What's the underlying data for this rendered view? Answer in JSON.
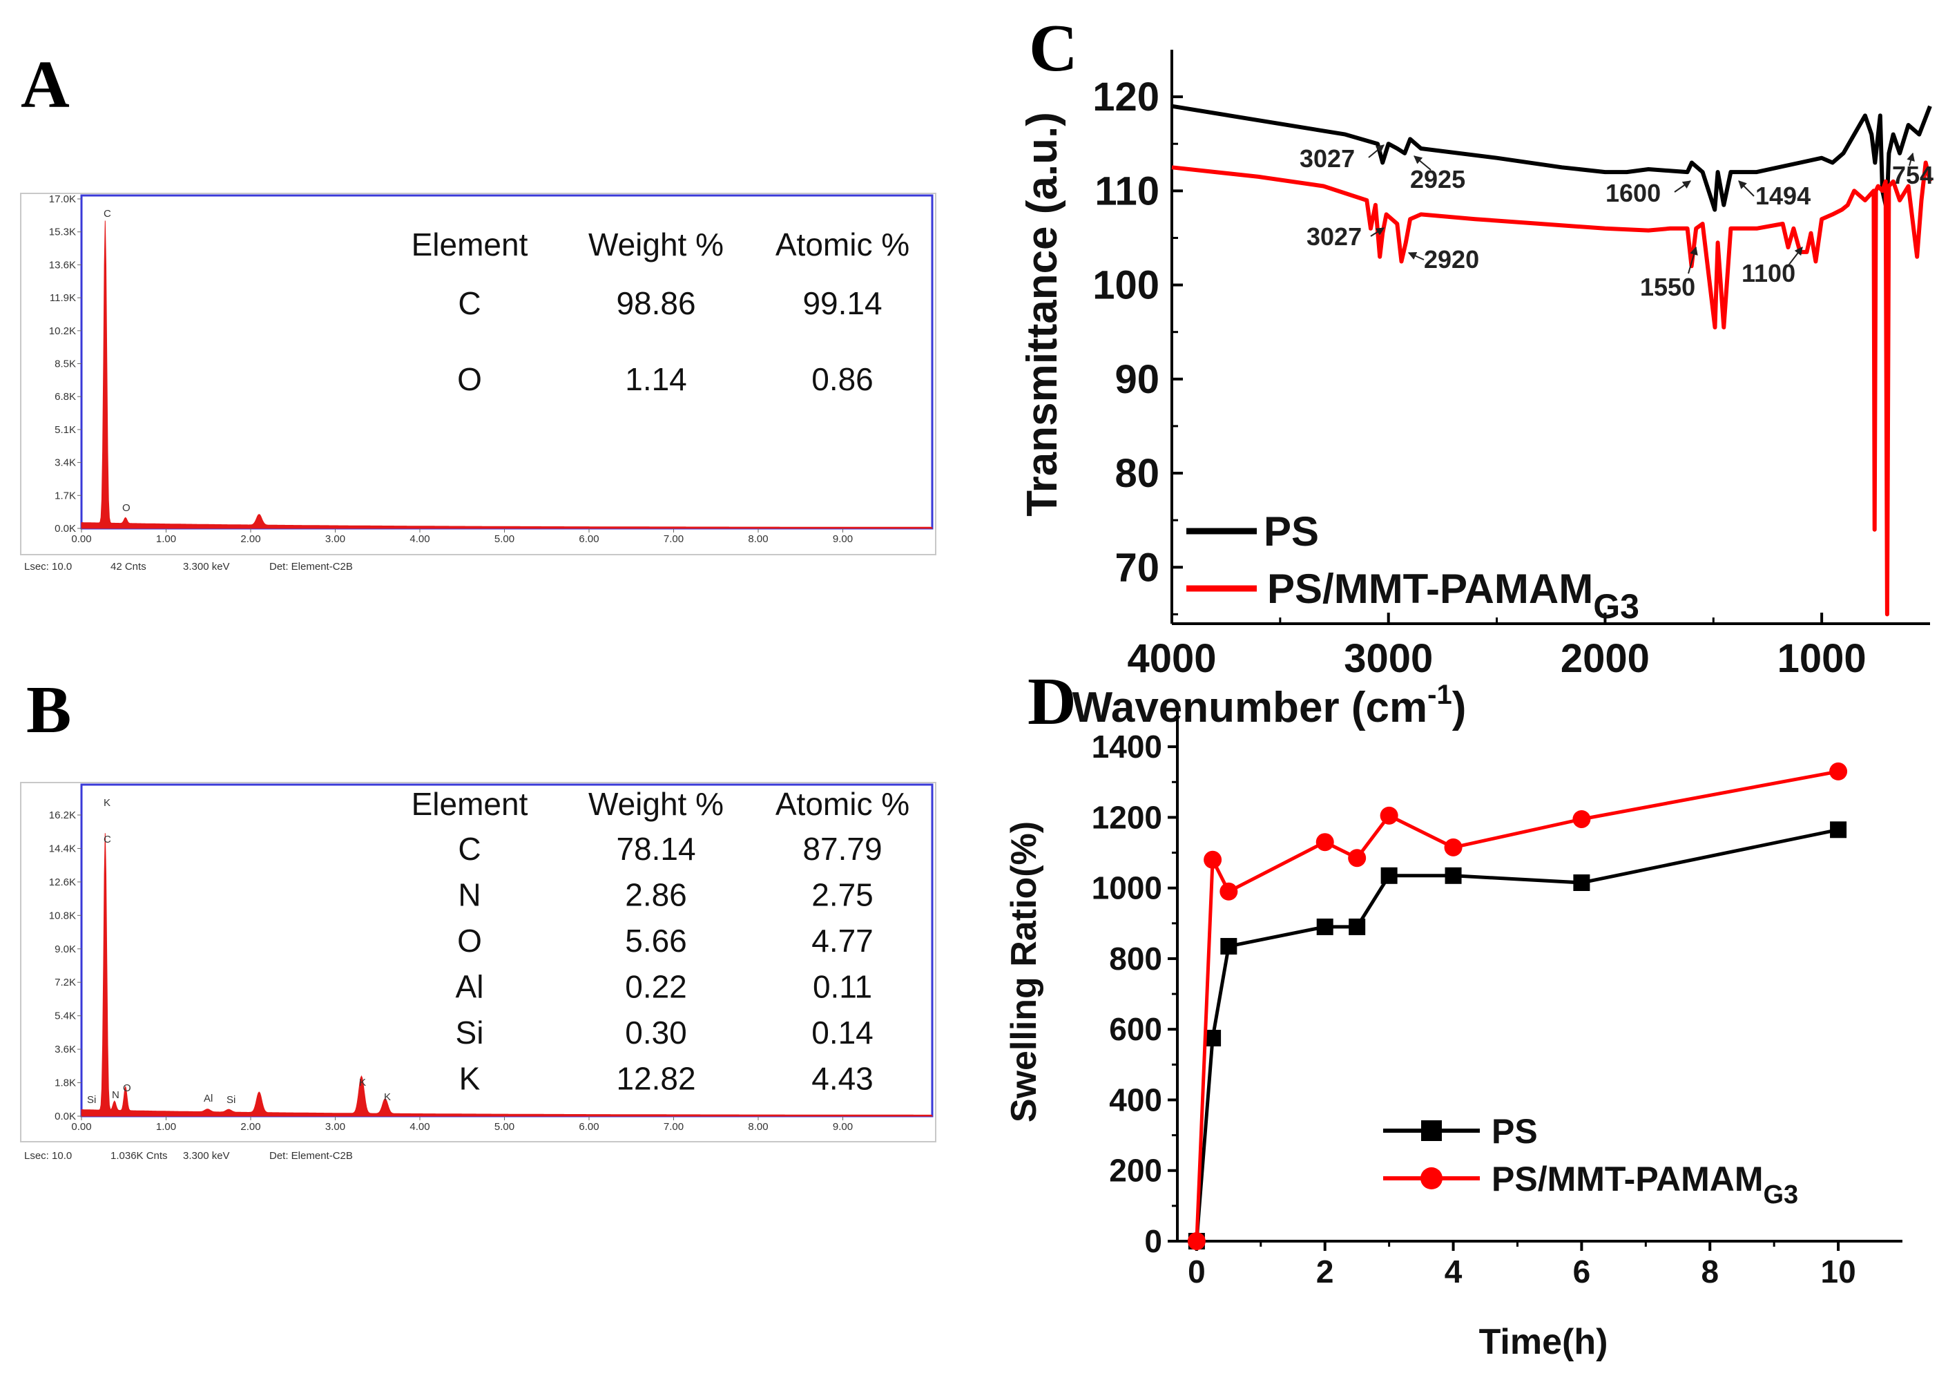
{
  "panel_labels": {
    "A": "A",
    "B": "B",
    "C": "C",
    "D": "D"
  },
  "colors": {
    "black": "#000000",
    "red": "#ff0000",
    "eds_fill": "#e41818",
    "eds_frame": "#3333dd"
  },
  "panel_A": {
    "table": {
      "headers": [
        "Element",
        "Weight %",
        "Atomic %"
      ],
      "rows": [
        [
          "C",
          "98.86",
          "99.14"
        ],
        [
          "O",
          "1.14",
          "0.86"
        ]
      ]
    },
    "yticks": [
      "17.0K",
      "15.3K",
      "13.6K",
      "11.9K",
      "10.2K",
      "8.5K",
      "6.8K",
      "5.1K",
      "3.4K",
      "1.7K",
      "0.0K"
    ],
    "xticks": [
      "0.00",
      "1.00",
      "2.00",
      "3.00",
      "4.00",
      "5.00",
      "6.00",
      "7.00",
      "8.00",
      "9.00"
    ],
    "peaks": [
      "C",
      "O"
    ],
    "footer": {
      "lsec": "Lsec: 10.0",
      "cnts": "42 Cnts",
      "kev": "3.300 keV",
      "det": "Det: Element-C2B"
    },
    "spectrum": {
      "ymax": 17.0,
      "peaks": [
        {
          "kev": 0.28,
          "k": 15.6
        },
        {
          "kev": 0.52,
          "k": 0.3
        },
        {
          "kev": 2.1,
          "k": 0.55
        }
      ],
      "baseline": 0.25
    }
  },
  "panel_B": {
    "table": {
      "headers": [
        "Element",
        "Weight %",
        "Atomic %"
      ],
      "rows": [
        [
          "C",
          "78.14",
          "87.79"
        ],
        [
          "N",
          "2.86",
          "2.75"
        ],
        [
          "O",
          "5.66",
          "4.77"
        ],
        [
          "Al",
          "0.22",
          "0.11"
        ],
        [
          "Si",
          "0.30",
          "0.14"
        ],
        [
          "K",
          "12.82",
          "4.43"
        ]
      ]
    },
    "yticks": [
      "16.2K",
      "14.4K",
      "12.6K",
      "10.8K",
      "9.0K",
      "7.2K",
      "5.4K",
      "3.6K",
      "1.8K",
      "0.0K"
    ],
    "xticks": [
      "0.00",
      "1.00",
      "2.00",
      "3.00",
      "4.00",
      "5.00",
      "6.00",
      "7.00",
      "8.00",
      "9.00"
    ],
    "peaks": [
      "K",
      "C",
      "Si",
      "N",
      "O",
      "Al",
      "Si",
      "K",
      "K"
    ],
    "footer": {
      "lsec": "Lsec: 10.0",
      "cnts": "1.036K Cnts",
      "kev": "3.300 keV",
      "det": "Det: Element-C2B"
    },
    "spectrum": {
      "ymax": 16.2,
      "peaks": [
        {
          "kev": 0.28,
          "k": 14.9
        },
        {
          "kev": 0.39,
          "k": 0.5
        },
        {
          "kev": 0.52,
          "k": 1.3
        },
        {
          "kev": 1.49,
          "k": 0.15
        },
        {
          "kev": 1.74,
          "k": 0.15
        },
        {
          "kev": 2.1,
          "k": 1.1
        },
        {
          "kev": 3.31,
          "k": 2.0
        },
        {
          "kev": 3.59,
          "k": 0.8
        }
      ],
      "baseline": 0.3
    }
  },
  "chart_data": [
    {
      "type": "line",
      "title": "",
      "xlabel": "Wavenumber (cm",
      "xlabel_sup": "-1",
      "xlabel_end": ")",
      "ylabel": "Transmittance (a.u.)",
      "xlim": [
        4000,
        500
      ],
      "ylim": [
        64,
        125
      ],
      "xticks": [
        4000,
        3000,
        2000,
        1000
      ],
      "yticks": [
        70,
        80,
        90,
        100,
        110,
        120
      ],
      "legend_position": "bottom-left",
      "series": [
        {
          "name": "PS",
          "name_sub": "",
          "color": "#000000",
          "x": [
            4000,
            3600,
            3200,
            3050,
            3027,
            3000,
            2960,
            2925,
            2900,
            2850,
            2500,
            2200,
            2000,
            1900,
            1800,
            1620,
            1600,
            1550,
            1494,
            1480,
            1452,
            1420,
            1300,
            1100,
            1000,
            950,
            900,
            850,
            800,
            770,
            754,
            730,
            720,
            700,
            690,
            670,
            640,
            600,
            550,
            500
          ],
          "y": [
            119,
            117.5,
            116,
            115,
            113,
            115,
            114.5,
            114,
            115.5,
            114.5,
            113.5,
            112.5,
            112,
            112,
            112.3,
            112,
            113,
            112,
            108,
            112,
            108.5,
            112,
            112,
            113,
            113.5,
            113,
            114,
            116,
            118,
            116,
            113,
            118,
            110,
            108,
            114,
            116,
            114,
            117,
            116,
            119
          ]
        },
        {
          "name": "PS/MMT-PAMAM",
          "name_sub": "G3",
          "color": "#ff0000",
          "x": [
            4000,
            3600,
            3300,
            3100,
            3082,
            3060,
            3040,
            3027,
            3010,
            2960,
            2940,
            2920,
            2900,
            2850,
            2600,
            2300,
            2000,
            1800,
            1700,
            1620,
            1601,
            1580,
            1550,
            1493,
            1480,
            1452,
            1420,
            1300,
            1180,
            1155,
            1130,
            1100,
            1069,
            1050,
            1028,
            1000,
            950,
            907,
            880,
            850,
            800,
            760,
            756,
            750,
            740,
            720,
            705,
            698,
            690,
            670,
            640,
            600,
            560,
            540,
            520,
            500
          ],
          "y": [
            112.5,
            111.5,
            110.5,
            109,
            106,
            108.5,
            103,
            105.5,
            107.5,
            106.5,
            102.5,
            104.5,
            107,
            107.5,
            107,
            106.5,
            106,
            105.8,
            106,
            106,
            102,
            106,
            106.5,
            95.5,
            104.5,
            95.5,
            106,
            106,
            106.5,
            104,
            106,
            103.5,
            103.5,
            105.5,
            102.5,
            107,
            107.5,
            108,
            108.5,
            110,
            109,
            110,
            74,
            110,
            110.5,
            110,
            111,
            65,
            110.5,
            111,
            109,
            110.5,
            103,
            109,
            113,
            111
          ]
        }
      ],
      "annotations": [
        {
          "text": "3027",
          "series": "PS",
          "x": 3027
        },
        {
          "text": "2925",
          "series": "PS",
          "x": 2925
        },
        {
          "text": "1600",
          "series": "PS",
          "x": 1600
        },
        {
          "text": "1494",
          "series": "PS",
          "x": 1494
        },
        {
          "text": "754",
          "series": "PS",
          "x": 754
        },
        {
          "text": "3027",
          "series": "PS/MMT-PAMAM",
          "x": 3027
        },
        {
          "text": "2920",
          "series": "PS/MMT-PAMAM",
          "x": 2920
        },
        {
          "text": "1550",
          "series": "PS/MMT-PAMAM",
          "x": 1550
        },
        {
          "text": "1100",
          "series": "PS/MMT-PAMAM",
          "x": 1100
        }
      ]
    },
    {
      "type": "line",
      "title": "",
      "xlabel": "Time(h)",
      "ylabel": "Swelling Ratio(%)",
      "xlim": [
        -0.3,
        11
      ],
      "ylim": [
        0,
        1500
      ],
      "xticks": [
        0,
        2,
        4,
        6,
        8,
        10
      ],
      "yticks": [
        0,
        200,
        400,
        600,
        800,
        1000,
        1200,
        1400
      ],
      "legend_position": "bottom-right",
      "series": [
        {
          "name": "PS",
          "name_sub": "",
          "color": "#000000",
          "marker": "square",
          "x": [
            0,
            0.25,
            0.5,
            2,
            2.5,
            3,
            4,
            6,
            10
          ],
          "y": [
            0,
            575,
            835,
            890,
            890,
            1035,
            1035,
            1015,
            1165
          ]
        },
        {
          "name": "PS/MMT-PAMAM",
          "name_sub": "G3",
          "color": "#ff0000",
          "marker": "circle",
          "x": [
            0,
            0.25,
            0.5,
            2,
            2.5,
            3,
            4,
            6,
            10
          ],
          "y": [
            0,
            1080,
            990,
            1130,
            1085,
            1205,
            1115,
            1195,
            1330
          ]
        }
      ]
    }
  ]
}
